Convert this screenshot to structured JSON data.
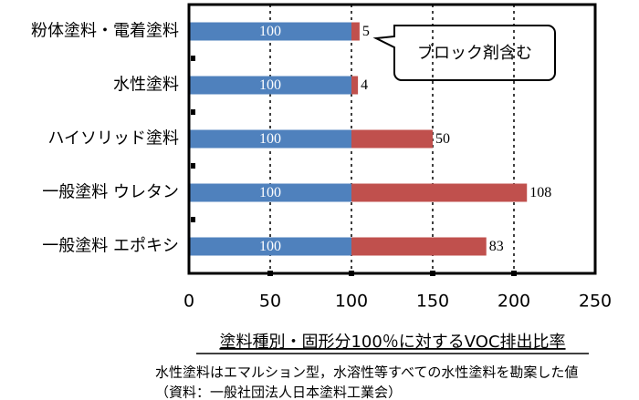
{
  "chart_data": {
    "type": "stacked-bar-horizontal",
    "categories": [
      "粉体塗料・電着塗料",
      "水性塗料",
      "ハイソリッド塗料",
      "一般塗料 ウレタン",
      "一般塗料 エポキシ"
    ],
    "series": [
      {
        "color": "#4f81bd",
        "values": [
          100,
          100,
          100,
          100,
          100
        ]
      },
      {
        "color": "#c0504d",
        "values": [
          5,
          4,
          50,
          108,
          83
        ]
      }
    ],
    "xlim": [
      0,
      250
    ],
    "xticks": [
      0,
      50,
      100,
      150,
      200,
      250
    ],
    "grid": true,
    "x_label": "塗料種別・固形分100％に対するVOC排出比率",
    "annotation": "ブロック剤含む",
    "notes": [
      "水性塗料はエマルション型，水溶性等すべての水性塗料を勘案した値",
      "（資料：一般社団法人日本塗料工業会）"
    ]
  }
}
